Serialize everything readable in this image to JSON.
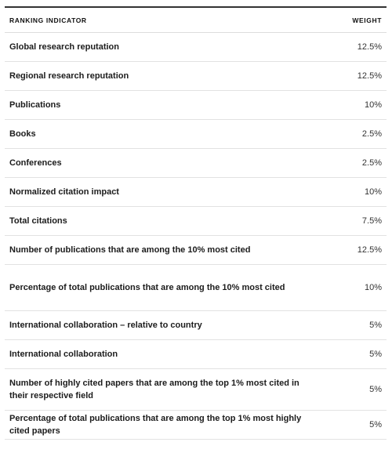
{
  "table": {
    "headers": {
      "indicator": "RANKING INDICATOR",
      "weight": "WEIGHT"
    },
    "rows": [
      {
        "indicator": "Global research reputation",
        "weight": "12.5%"
      },
      {
        "indicator": "Regional research reputation",
        "weight": "12.5%"
      },
      {
        "indicator": "Publications",
        "weight": "10%"
      },
      {
        "indicator": "Books",
        "weight": "2.5%"
      },
      {
        "indicator": "Conferences",
        "weight": "2.5%"
      },
      {
        "indicator": "Normalized citation impact",
        "weight": "10%"
      },
      {
        "indicator": "Total citations",
        "weight": "7.5%"
      },
      {
        "indicator": "Number of publications that are among the 10% most cited",
        "weight": "12.5%"
      },
      {
        "indicator": "Percentage of total publications that are among the 10% most cited",
        "weight": "10%"
      },
      {
        "indicator": "International collaboration – relative to country",
        "weight": "5%"
      },
      {
        "indicator": "International collaboration",
        "weight": "5%"
      },
      {
        "indicator": "Number of highly cited papers that are among the top 1% most cited in their respective field",
        "weight": "5%"
      },
      {
        "indicator": "Percentage of total publications that are among the top 1% most highly cited papers",
        "weight": "5%"
      }
    ]
  }
}
